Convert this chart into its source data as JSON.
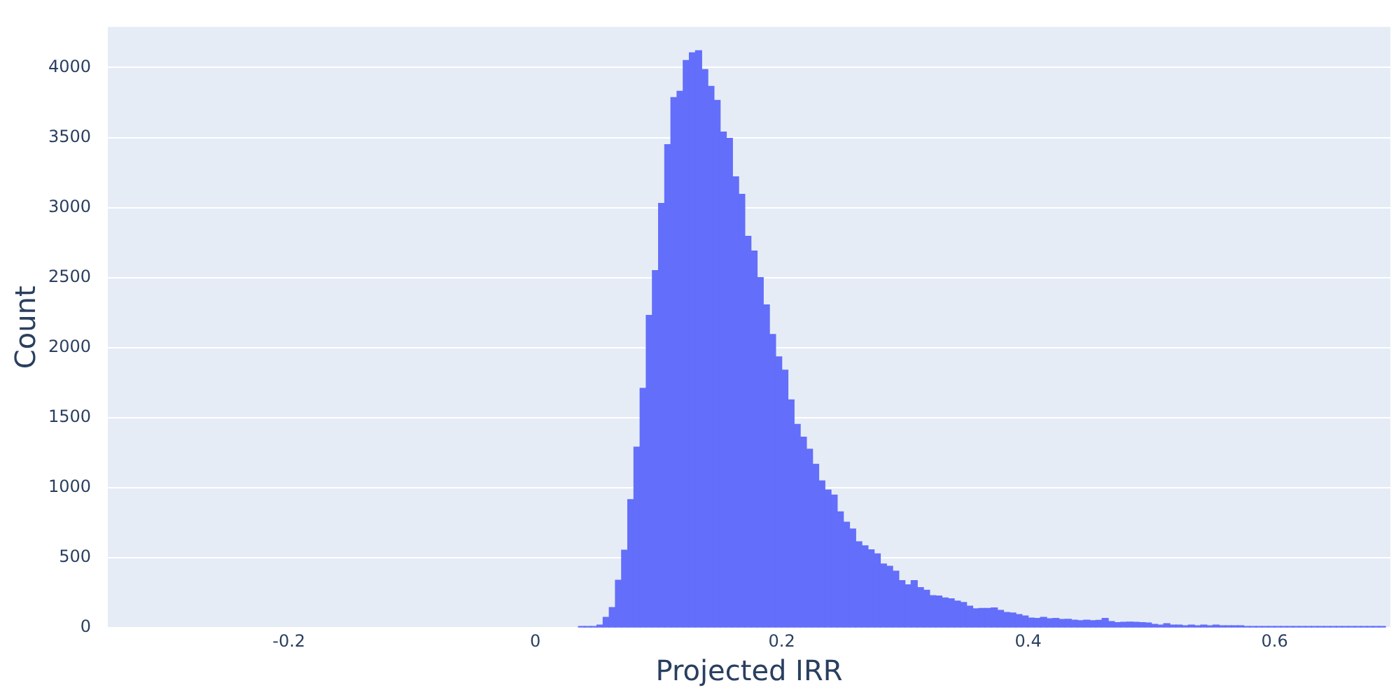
{
  "chart_data": {
    "type": "histogram",
    "xlabel": "Projected IRR",
    "ylabel": "Count",
    "color": "#636efa",
    "bins": [
      0.035,
      0.04,
      0.045,
      0.05,
      0.055,
      0.06,
      0.065,
      0.07,
      0.075,
      0.08,
      0.085,
      0.09,
      0.095,
      0.1,
      0.105,
      0.11,
      0.115,
      0.12,
      0.125,
      0.13,
      0.135,
      0.14,
      0.145,
      0.15,
      0.155,
      0.16,
      0.165,
      0.17,
      0.175,
      0.18,
      0.185,
      0.19,
      0.195,
      0.2,
      0.205,
      0.21,
      0.215,
      0.22,
      0.225,
      0.23,
      0.235,
      0.24,
      0.245,
      0.25,
      0.255,
      0.26,
      0.265,
      0.27,
      0.275,
      0.28,
      0.285,
      0.29,
      0.295,
      0.3,
      0.305,
      0.31,
      0.315,
      0.32,
      0.325,
      0.33,
      0.335,
      0.34,
      0.345,
      0.35,
      0.355,
      0.36,
      0.365,
      0.37,
      0.375,
      0.38,
      0.385,
      0.39,
      0.395,
      0.4,
      0.405,
      0.41,
      0.415,
      0.42,
      0.425,
      0.43,
      0.435,
      0.44,
      0.445,
      0.45,
      0.455,
      0.46,
      0.465,
      0.47,
      0.475,
      0.48,
      0.485,
      0.49,
      0.495,
      0.5,
      0.505,
      0.51,
      0.515,
      0.52,
      0.525,
      0.53,
      0.535,
      0.54,
      0.545,
      0.55,
      0.555,
      0.56,
      0.565,
      0.57,
      0.575,
      0.58,
      0.585,
      0.59,
      0.595,
      0.6,
      0.605,
      0.61,
      0.615,
      0.62,
      0.625,
      0.63,
      0.635,
      0.64,
      0.645,
      0.65,
      0.655,
      0.66,
      0.665,
      0.67,
      0.675,
      0.68,
      0.685,
      0.69
    ],
    "values": [
      10,
      10,
      10,
      20,
      75,
      145,
      340,
      555,
      915,
      1290,
      1710,
      2230,
      2550,
      3030,
      3450,
      3785,
      3830,
      4050,
      4105,
      4120,
      3985,
      3865,
      3765,
      3540,
      3495,
      3220,
      3095,
      2795,
      2690,
      2500,
      2305,
      2095,
      1935,
      1840,
      1628,
      1453,
      1362,
      1275,
      1168,
      1049,
      984,
      948,
      828,
      754,
      706,
      615,
      586,
      557,
      528,
      456,
      440,
      405,
      337,
      307,
      337,
      288,
      269,
      230,
      227,
      214,
      207,
      191,
      181,
      155,
      136,
      139,
      139,
      142,
      125,
      110,
      106,
      95,
      85,
      70,
      68,
      75,
      65,
      68,
      60,
      62,
      55,
      52,
      55,
      52,
      54,
      68,
      45,
      38,
      40,
      42,
      40,
      38,
      35,
      25,
      20,
      30,
      20,
      20,
      15,
      20,
      15,
      20,
      15,
      20,
      15,
      15,
      15,
      15,
      10,
      10,
      10,
      10,
      10,
      10,
      10,
      10,
      10,
      10,
      10,
      10,
      10,
      10,
      10,
      10,
      10,
      10,
      10,
      10,
      10,
      10,
      10
    ],
    "xlim": [
      -0.347,
      0.694
    ],
    "xticks": [
      -0.2,
      0,
      0.2,
      0.4,
      0.6
    ],
    "ylim": [
      0,
      4290
    ],
    "yticks": [
      0,
      500,
      1000,
      1500,
      2000,
      2500,
      3000,
      3500,
      4000
    ],
    "grid": "y"
  }
}
